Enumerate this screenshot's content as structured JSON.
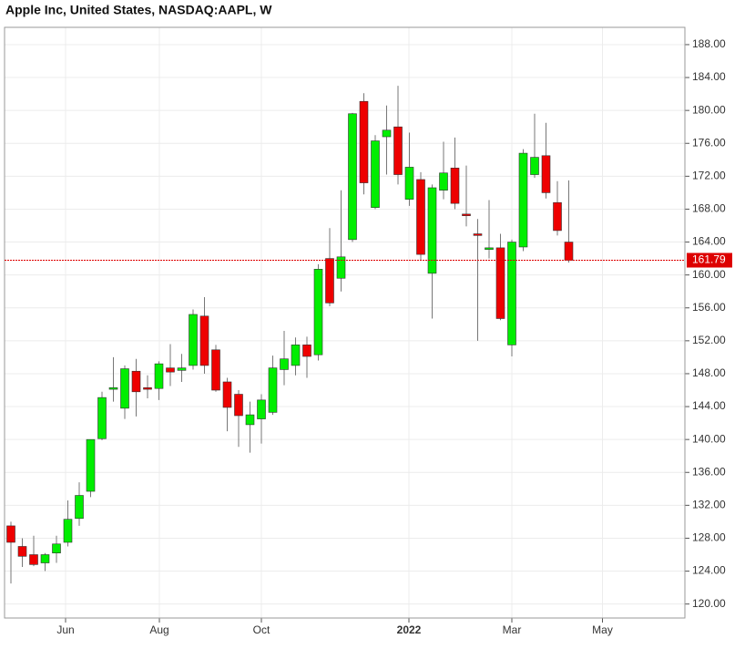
{
  "chart_data": {
    "type": "candlestick",
    "title": "Apple Inc, United States, NASDAQ:AAPL, W",
    "x": [
      0,
      1,
      2,
      3,
      4,
      5,
      6,
      7,
      8,
      9,
      10,
      11,
      12,
      13,
      14,
      15,
      16,
      17,
      18,
      19,
      20,
      21,
      22,
      23,
      24,
      25,
      26,
      27,
      28,
      29,
      30,
      31,
      32,
      33,
      34,
      35,
      36,
      37,
      38,
      39,
      40,
      41,
      42,
      43,
      44,
      45,
      46,
      47,
      48,
      49
    ],
    "open": [
      129.5,
      127,
      126,
      125,
      126.2,
      127.5,
      130.4,
      133.7,
      140.1,
      146.1,
      143.8,
      148.3,
      146.3,
      146.2,
      148.7,
      148.4,
      149,
      155,
      150.9,
      147,
      145.5,
      141.8,
      142.5,
      143.3,
      148.5,
      149,
      151.5,
      150.3,
      162,
      159.6,
      164.3,
      181.1,
      168.2,
      176.8,
      178,
      169.2,
      171.6,
      160.2,
      170.3,
      173,
      167.4,
      165,
      163.1,
      163.3,
      151.5,
      163.4,
      172.2,
      174.5,
      168.8,
      164
    ],
    "high": [
      130,
      128,
      128.3,
      126.2,
      128.3,
      132.6,
      134.8,
      140,
      145.8,
      150,
      149,
      149.8,
      147.8,
      149.5,
      151.6,
      150.4,
      155.8,
      157.3,
      151.5,
      147.5,
      146,
      144.6,
      145.5,
      150.2,
      153.2,
      152.4,
      152.5,
      161.3,
      165.7,
      170.3,
      179.7,
      182.1,
      177,
      180.6,
      183,
      177.3,
      172.5,
      171,
      176.2,
      176.7,
      173.3,
      166.8,
      169.1,
      165,
      164.3,
      175.3,
      179.6,
      178.5,
      171.4,
      171.5
    ],
    "low": [
      122.5,
      124.5,
      124.6,
      124,
      125,
      127,
      129.5,
      133,
      139.9,
      144.6,
      142.5,
      142.8,
      145,
      144.8,
      146.5,
      147,
      148.5,
      148,
      145.8,
      141,
      139.1,
      138.4,
      139.5,
      143,
      146.6,
      147.8,
      147.5,
      149.6,
      156.2,
      158,
      164,
      169.8,
      168,
      172.2,
      171,
      168.4,
      161.8,
      154.7,
      169.2,
      168,
      165.9,
      152,
      162,
      154.5,
      150.1,
      162.9,
      171.8,
      169.3,
      164.8,
      161.5
    ],
    "close": [
      127.5,
      125.8,
      124.8,
      126,
      127.3,
      130.3,
      133.2,
      140,
      145.1,
      146.3,
      148.6,
      145.8,
      146.1,
      149.2,
      148.2,
      148.7,
      155.2,
      149,
      146,
      143.9,
      142.9,
      143,
      144.8,
      148.7,
      149.8,
      151.5,
      150.1,
      160.7,
      156.6,
      162.2,
      179.6,
      171.2,
      176.3,
      177.6,
      172.2,
      173.1,
      162.5,
      170.6,
      172.4,
      168.7,
      167.2,
      164.8,
      163.3,
      154.7,
      164,
      174.8,
      174.3,
      170,
      165.4,
      161.79
    ],
    "up_color": "#00ee00",
    "down_color": "#ee0000",
    "last_price": 161.79,
    "last_price_color": "#dd0000",
    "xlim": [
      -0.56,
      59.2
    ],
    "xticks": [
      {
        "value": 4.8,
        "label": "Jun"
      },
      {
        "value": 13.04,
        "label": "Aug"
      },
      {
        "value": 22,
        "label": "Oct"
      },
      {
        "value": 34.96,
        "label": "2022"
      },
      {
        "value": 44,
        "label": "Mar"
      },
      {
        "value": 51.96,
        "label": "May"
      }
    ],
    "ylim": [
      118.3,
      190.1
    ],
    "yticks": [
      {
        "value": 120,
        "label": "120.00"
      },
      {
        "value": 124,
        "label": "124.00"
      },
      {
        "value": 128,
        "label": "128.00"
      },
      {
        "value": 132,
        "label": "132.00"
      },
      {
        "value": 136,
        "label": "136.00"
      },
      {
        "value": 140,
        "label": "140.00"
      },
      {
        "value": 144,
        "label": "144.00"
      },
      {
        "value": 148,
        "label": "148.00"
      },
      {
        "value": 152,
        "label": "152.00"
      },
      {
        "value": 156,
        "label": "156.00"
      },
      {
        "value": 160,
        "label": "160.00"
      },
      {
        "value": 164,
        "label": "164.00"
      },
      {
        "value": 168,
        "label": "168.00"
      },
      {
        "value": 172,
        "label": "172.00"
      },
      {
        "value": 176,
        "label": "176.00"
      },
      {
        "value": 180,
        "label": "180.00"
      },
      {
        "value": 184,
        "label": "184.00"
      },
      {
        "value": 188,
        "label": "188.00"
      }
    ],
    "grid": true
  }
}
